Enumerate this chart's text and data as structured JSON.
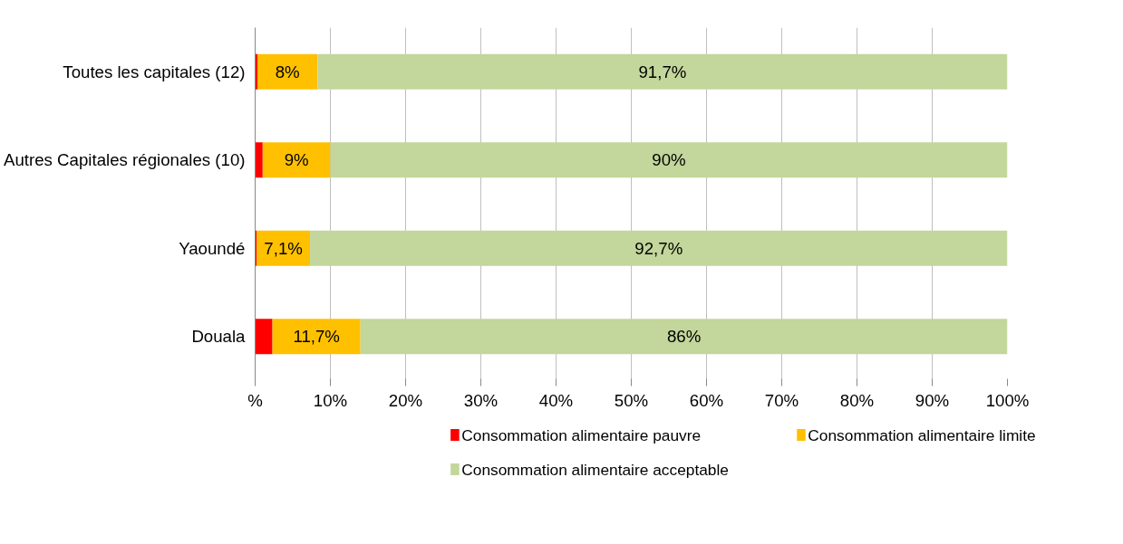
{
  "chart_data": {
    "type": "bar",
    "orientation": "horizontal",
    "stacked": true,
    "categories": [
      "Toutes les capitales (12)",
      "Autres Capitales régionales (10)",
      "Yaoundé",
      "Douala"
    ],
    "series": [
      {
        "name": "Consommation alimentaire pauvre",
        "color": "#ff0000",
        "values": [
          0.3,
          1,
          0.2,
          2.3
        ]
      },
      {
        "name": "Consommation alimentaire limite",
        "color": "#ffc000",
        "values": [
          8,
          9,
          7.1,
          11.7
        ],
        "value_labels": [
          "8%",
          "9%",
          "7,1%",
          "11,7%"
        ]
      },
      {
        "name": "Consommation alimentaire acceptable",
        "color": "#c3d69b",
        "values": [
          91.7,
          90,
          92.7,
          86
        ],
        "value_labels": [
          "91,7%",
          "90%",
          "92,7%",
          "86%"
        ]
      }
    ],
    "xlim": [
      0,
      100
    ],
    "xticks": [
      {
        "value": 0,
        "label": "%"
      },
      {
        "value": 10,
        "label": "10%"
      },
      {
        "value": 20,
        "label": "20%"
      },
      {
        "value": 30,
        "label": "30%"
      },
      {
        "value": 40,
        "label": "40%"
      },
      {
        "value": 50,
        "label": "50%"
      },
      {
        "value": 60,
        "label": "60%"
      },
      {
        "value": 70,
        "label": "70%"
      },
      {
        "value": 80,
        "label": "80%"
      },
      {
        "value": 90,
        "label": "90%"
      },
      {
        "value": 100,
        "label": "100%"
      }
    ],
    "grid": "x",
    "legend": "bottom"
  }
}
